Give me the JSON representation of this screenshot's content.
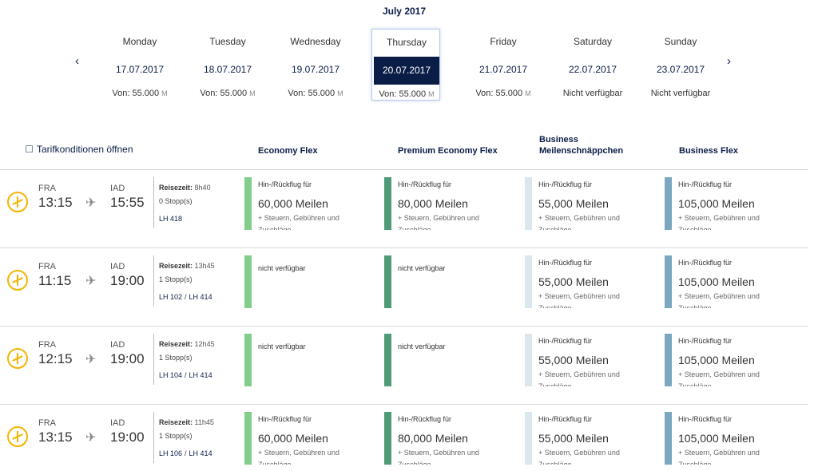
{
  "calendar": {
    "month": "July 2017",
    "days": [
      {
        "weekday": "Monday",
        "date": "17.07.2017",
        "price": "Von: 55.000",
        "unit": "M"
      },
      {
        "weekday": "Tuesday",
        "date": "18.07.2017",
        "price": "Von: 55.000",
        "unit": "M"
      },
      {
        "weekday": "Wednesday",
        "date": "19.07.2017",
        "price": "Von: 55.000",
        "unit": "M"
      },
      {
        "weekday": "Thursday",
        "date": "20.07.2017",
        "price": "Von: 55.000",
        "unit": "M",
        "selected": true
      },
      {
        "weekday": "Friday",
        "date": "21.07.2017",
        "price": "Von: 55.000",
        "unit": "M"
      },
      {
        "weekday": "Saturday",
        "date": "22.07.2017",
        "price": "Nicht verfügbar",
        "unit": ""
      },
      {
        "weekday": "Sunday",
        "date": "23.07.2017",
        "price": "Nicht verfügbar",
        "unit": ""
      }
    ],
    "prev_icon": "chevron-left-icon",
    "next_icon": "chevron-right-icon"
  },
  "tarif_link": "Tarifkonditionen öffnen",
  "columns": [
    {
      "label": "Economy Flex",
      "color": "#84cd8a"
    },
    {
      "label": "Premium Economy Flex",
      "color": "#4f9a78"
    },
    {
      "label": "Business Meilenschnäppchen",
      "color": "#dce6ed"
    },
    {
      "label": "Business Flex",
      "color": "#7ba7c0"
    }
  ],
  "fare_text": {
    "line1": "Hin-/Rückflug für",
    "line3": "+ Steuern, Gebühren und",
    "line4": "Zuschläge",
    "na": "nicht verfügbar"
  },
  "flights": [
    {
      "from": "FRA",
      "dep": "13:15",
      "to": "IAD",
      "arr": "15:55",
      "rz_label": "Reisezeit:",
      "rz": "8h40",
      "stops": "0 Stopp(s)",
      "flights": [
        "LH 418"
      ],
      "fares": [
        "60,000 Meilen",
        "80,000 Meilen",
        "55,000 Meilen",
        "105,000 Meilen"
      ]
    },
    {
      "from": "FRA",
      "dep": "11:15",
      "to": "IAD",
      "arr": "19:00",
      "rz_label": "Reisezeit:",
      "rz": "13h45",
      "stops": "1 Stopp(s)",
      "flights": [
        "LH 102",
        "LH 414"
      ],
      "fares": [
        null,
        null,
        "55,000 Meilen",
        "105,000 Meilen"
      ]
    },
    {
      "from": "FRA",
      "dep": "12:15",
      "to": "IAD",
      "arr": "19:00",
      "rz_label": "Reisezeit:",
      "rz": "12h45",
      "stops": "1 Stopp(s)",
      "flights": [
        "LH 104",
        "LH 414"
      ],
      "fares": [
        null,
        null,
        "55,000 Meilen",
        "105,000 Meilen"
      ]
    },
    {
      "from": "FRA",
      "dep": "13:15",
      "to": "IAD",
      "arr": "19:00",
      "rz_label": "Reisezeit:",
      "rz": "11h45",
      "stops": "1 Stopp(s)",
      "flights": [
        "LH 106",
        "LH 414"
      ],
      "fares": [
        "60,000 Meilen",
        "80,000 Meilen",
        "55,000 Meilen",
        "105,000 Meilen"
      ]
    }
  ]
}
